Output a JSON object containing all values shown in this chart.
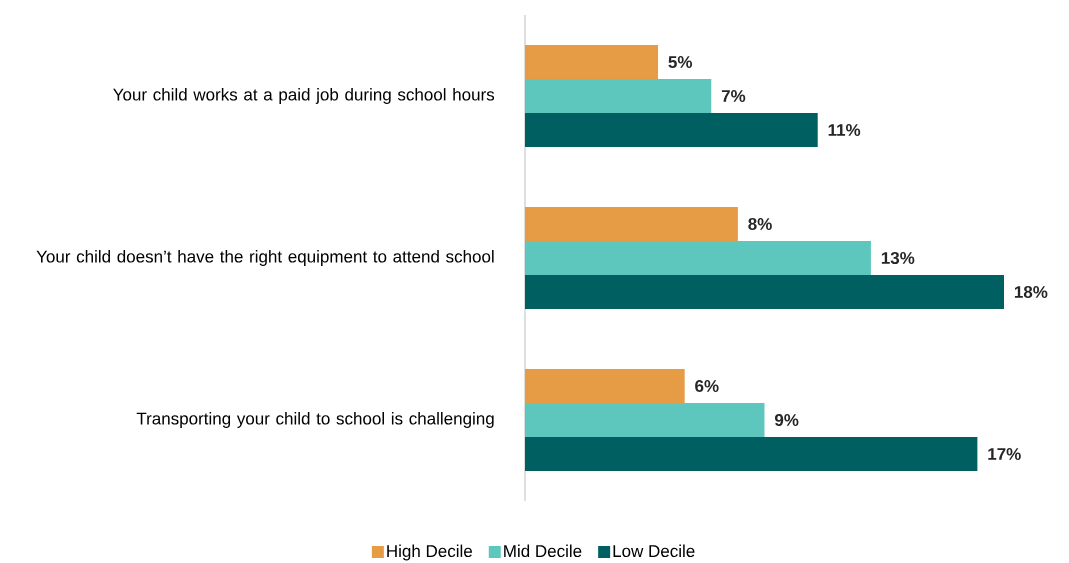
{
  "chart_data": {
    "type": "bar",
    "orientation": "horizontal",
    "categories": [
      "Your child works at a paid job during school hours",
      "Your child doesn’t have the right equipment to attend school",
      "Transporting your child to school is challenging"
    ],
    "series": [
      {
        "name": "High Decile",
        "color": "#e59c45",
        "values": [
          5,
          8,
          6
        ],
        "value_labels": [
          "5%",
          "8%",
          "6%"
        ]
      },
      {
        "name": "Mid Decile",
        "color": "#5ec7bd",
        "values": [
          7,
          13,
          9
        ],
        "value_labels": [
          "7%",
          "13%",
          "9%"
        ]
      },
      {
        "name": "Low Decile",
        "color": "#005f60",
        "values": [
          11,
          18,
          17
        ],
        "value_labels": [
          "11%",
          "18%",
          "17%"
        ]
      }
    ],
    "legend": "bottom"
  }
}
